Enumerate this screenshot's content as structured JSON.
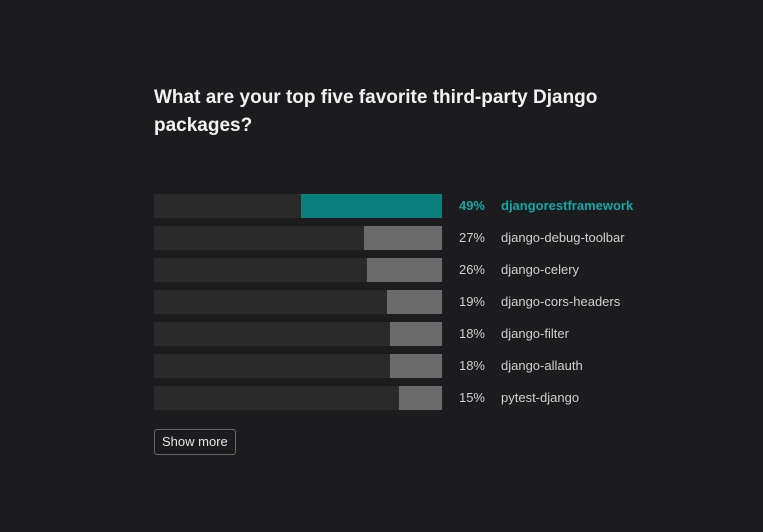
{
  "question": "What are your top five favorite third-party Django packages?",
  "chart_data": {
    "type": "bar",
    "orientation": "horizontal",
    "categories": [
      "djangorestframework",
      "django-debug-toolbar",
      "django-celery",
      "django-cors-headers",
      "django-filter",
      "django-allauth",
      "pytest-django"
    ],
    "values": [
      49,
      27,
      26,
      19,
      18,
      18,
      15
    ],
    "value_labels": [
      "49%",
      "27%",
      "26%",
      "19%",
      "18%",
      "18%",
      "15%"
    ],
    "unit": "%",
    "xlim": [
      0,
      100
    ],
    "highlight_index": 0
  },
  "colors": {
    "background": "#1c1c1e",
    "track": "#2a2a2b",
    "bar": "#6b6b6b",
    "highlight": "#0b7e7e",
    "highlight_text": "#13a6a6"
  },
  "show_more_label": "Show more"
}
